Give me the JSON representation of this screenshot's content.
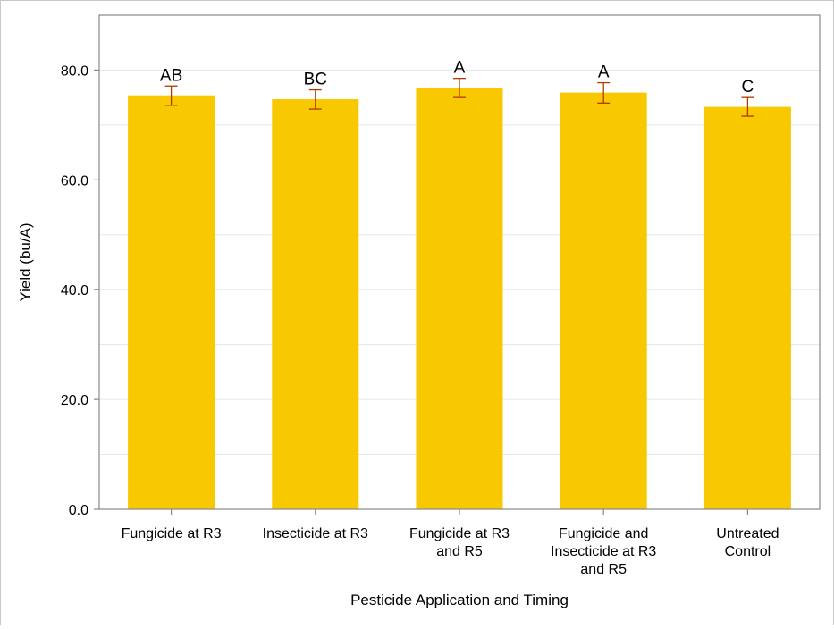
{
  "chart_data": {
    "type": "bar",
    "xlabel": "Pesticide Application and Timing",
    "ylabel": "Yield (bu/A)",
    "ylim": [
      0,
      90
    ],
    "yticks": [
      "0.0",
      "20.0",
      "40.0",
      "60.0",
      "80.0"
    ],
    "grid": true,
    "categories": [
      [
        "Fungicide at R3"
      ],
      [
        "Insecticide at R3"
      ],
      [
        "Fungicide at R3",
        "and R5"
      ],
      [
        "Fungicide and",
        "Insecticide at R3",
        "and R5"
      ],
      [
        "Untreated",
        "Control"
      ]
    ],
    "values": [
      75.4,
      74.7,
      76.8,
      75.9,
      73.3
    ],
    "error_low": [
      73.6,
      72.9,
      75.0,
      74.0,
      71.6
    ],
    "error_high": [
      77.1,
      76.4,
      78.5,
      77.7,
      75.0
    ],
    "letters": [
      "AB",
      "BC",
      "A",
      "A",
      "C"
    ],
    "colors": {
      "bar": "#F8C800",
      "error": "#B03A00",
      "axis": "#888888",
      "grid": "#e6e6e6"
    }
  }
}
